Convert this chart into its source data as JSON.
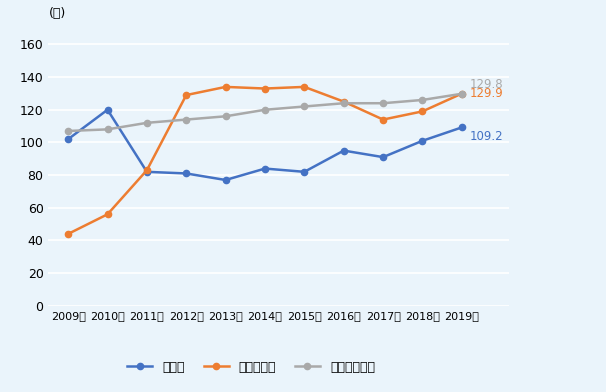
{
  "years": [
    2009,
    2010,
    2011,
    2012,
    2013,
    2014,
    2015,
    2016,
    2017,
    2018,
    2019
  ],
  "bahamas": [
    102,
    120,
    82,
    81,
    77,
    84,
    82,
    95,
    91,
    101,
    109.2
  ],
  "cambodia": [
    44,
    56,
    83,
    129,
    134,
    133,
    134,
    125,
    114,
    119,
    129.9
  ],
  "high_income": [
    107,
    108,
    112,
    114,
    116,
    120,
    122,
    124,
    124,
    126,
    129.8
  ],
  "bahamas_color": "#4472C4",
  "cambodia_color": "#ED7D31",
  "high_income_color": "#A9A9A9",
  "ylabel": "(台)",
  "yticks": [
    0,
    20,
    40,
    60,
    80,
    100,
    120,
    140,
    160
  ],
  "ylim": [
    0,
    168
  ],
  "legend_bahamas": "バハマ",
  "legend_cambodia": "カンボジア",
  "legend_high_income": "高所得国平均",
  "label_bahamas": "109.2",
  "label_cambodia": "129.9",
  "label_high_income": "129.8",
  "background_color": "#EAF4FB"
}
